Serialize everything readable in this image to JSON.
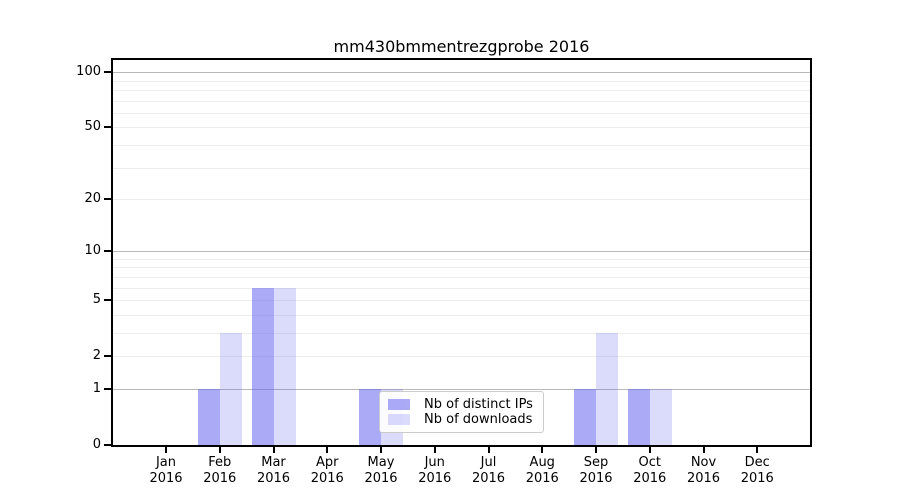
{
  "figure": {
    "title": "mm430bmmentrezgprobe 2016",
    "background": "#ffffff"
  },
  "chart_data": {
    "type": "bar",
    "title": "mm430bmmentrezgprobe 2016",
    "categories": [
      "Jan",
      "Feb",
      "Mar",
      "Apr",
      "May",
      "Jun",
      "Jul",
      "Aug",
      "Sep",
      "Oct",
      "Nov",
      "Dec"
    ],
    "category_year": "2016",
    "series": [
      {
        "name": "Nb of distinct IPs",
        "color": "rgba(100,100,240,0.55)",
        "values": [
          0,
          1,
          6,
          0,
          1,
          0,
          0,
          0,
          1,
          1,
          0,
          0
        ]
      },
      {
        "name": "Nb of downloads",
        "color": "rgba(100,100,240,0.23)",
        "values": [
          0,
          3,
          6,
          0,
          1,
          0,
          0,
          0,
          3,
          1,
          0,
          0
        ]
      }
    ],
    "yscale": "log1p",
    "ylim": [
      0,
      117
    ],
    "yticks": [
      0,
      1,
      2,
      5,
      10,
      20,
      50,
      100
    ],
    "major_gridlines": [
      1,
      10,
      100
    ],
    "minor_gridlines": [
      2,
      3,
      4,
      5,
      6,
      7,
      8,
      9,
      20,
      30,
      40,
      50,
      60,
      70,
      80,
      90
    ],
    "xlabel": "",
    "ylabel": "",
    "grid": "on",
    "legend": {
      "position": "lower-center-inside",
      "entries": [
        "Nb of distinct IPs",
        "Nb of downloads"
      ]
    },
    "colors": {
      "bar_base": "#6464f0",
      "major_grid": "#b8b8b8",
      "minor_grid": "#ededed",
      "axis": "#000000",
      "legend_border": "#cccccc"
    }
  }
}
